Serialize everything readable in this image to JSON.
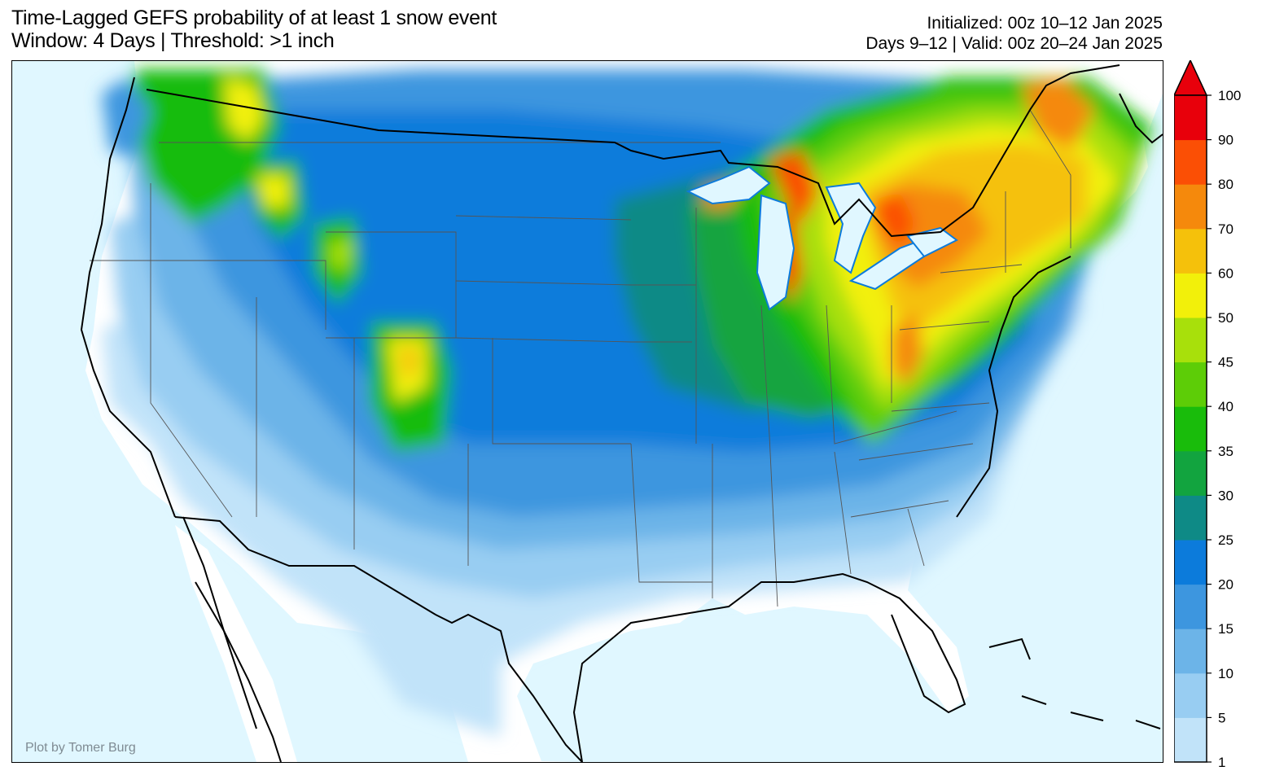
{
  "title": {
    "line1": "Time-Lagged GEFS probability of at least 1 snow event",
    "line2": "Window: 4 Days | Threshold: >1 inch"
  },
  "meta": {
    "initialized": "Initialized: 00z 10–12 Jan 2025",
    "valid": "Days 9–12 | Valid: 00z 20–24 Jan 2025"
  },
  "credit": "Plot by Tomer Burg",
  "colorbar": {
    "levels": [
      "1",
      "5",
      "10",
      "15",
      "20",
      "25",
      "30",
      "35",
      "40",
      "45",
      "50",
      "60",
      "70",
      "80",
      "90",
      "100"
    ],
    "colors": [
      "#c1e3f9",
      "#98cdf2",
      "#6cb4e8",
      "#3d96df",
      "#0c7bdb",
      "#0e8a86",
      "#12a43f",
      "#19bc0b",
      "#5dcd07",
      "#a8e00b",
      "#f2f00a",
      "#f5c10b",
      "#f5890c",
      "#fb4f05",
      "#e8000b"
    ],
    "extend": "max"
  },
  "map_colors": {
    "ocean": "#e0f7ff",
    "land_zero": "#ffffff",
    "borders": "#000000"
  }
}
